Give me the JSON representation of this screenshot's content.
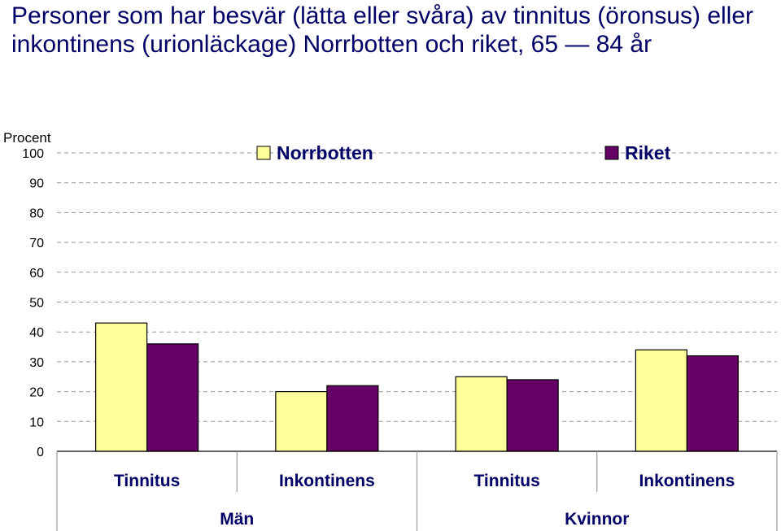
{
  "title": "Personer som har besvär (lätta eller svåra) av tinnitus (öronsus) eller inkontinens (urionläckage) Norrbotten och riket, 65 — 84 år",
  "colors": {
    "norrbotten": "#FFFF99",
    "riket": "#660066",
    "text": "#000066",
    "grid": "#999999"
  },
  "chart_data": {
    "type": "bar",
    "ylabel": "Procent",
    "ylim": [
      0,
      100
    ],
    "yticks": [
      "0",
      "10",
      "20",
      "30",
      "40",
      "50",
      "60",
      "70",
      "80",
      "90",
      "100"
    ],
    "grid": true,
    "legend_position": "top",
    "categories": [
      "Tinnitus",
      "Inkontinens",
      "Tinnitus",
      "Inkontinens"
    ],
    "groups": [
      {
        "label": "Män",
        "categories": [
          "Tinnitus",
          "Inkontinens"
        ]
      },
      {
        "label": "Kvinnor",
        "categories": [
          "Tinnitus",
          "Inkontinens"
        ]
      }
    ],
    "series": [
      {
        "name": "Norrbotten",
        "values": [
          43,
          20,
          25,
          34
        ]
      },
      {
        "name": "Riket",
        "values": [
          36,
          22,
          24,
          32
        ]
      }
    ]
  }
}
